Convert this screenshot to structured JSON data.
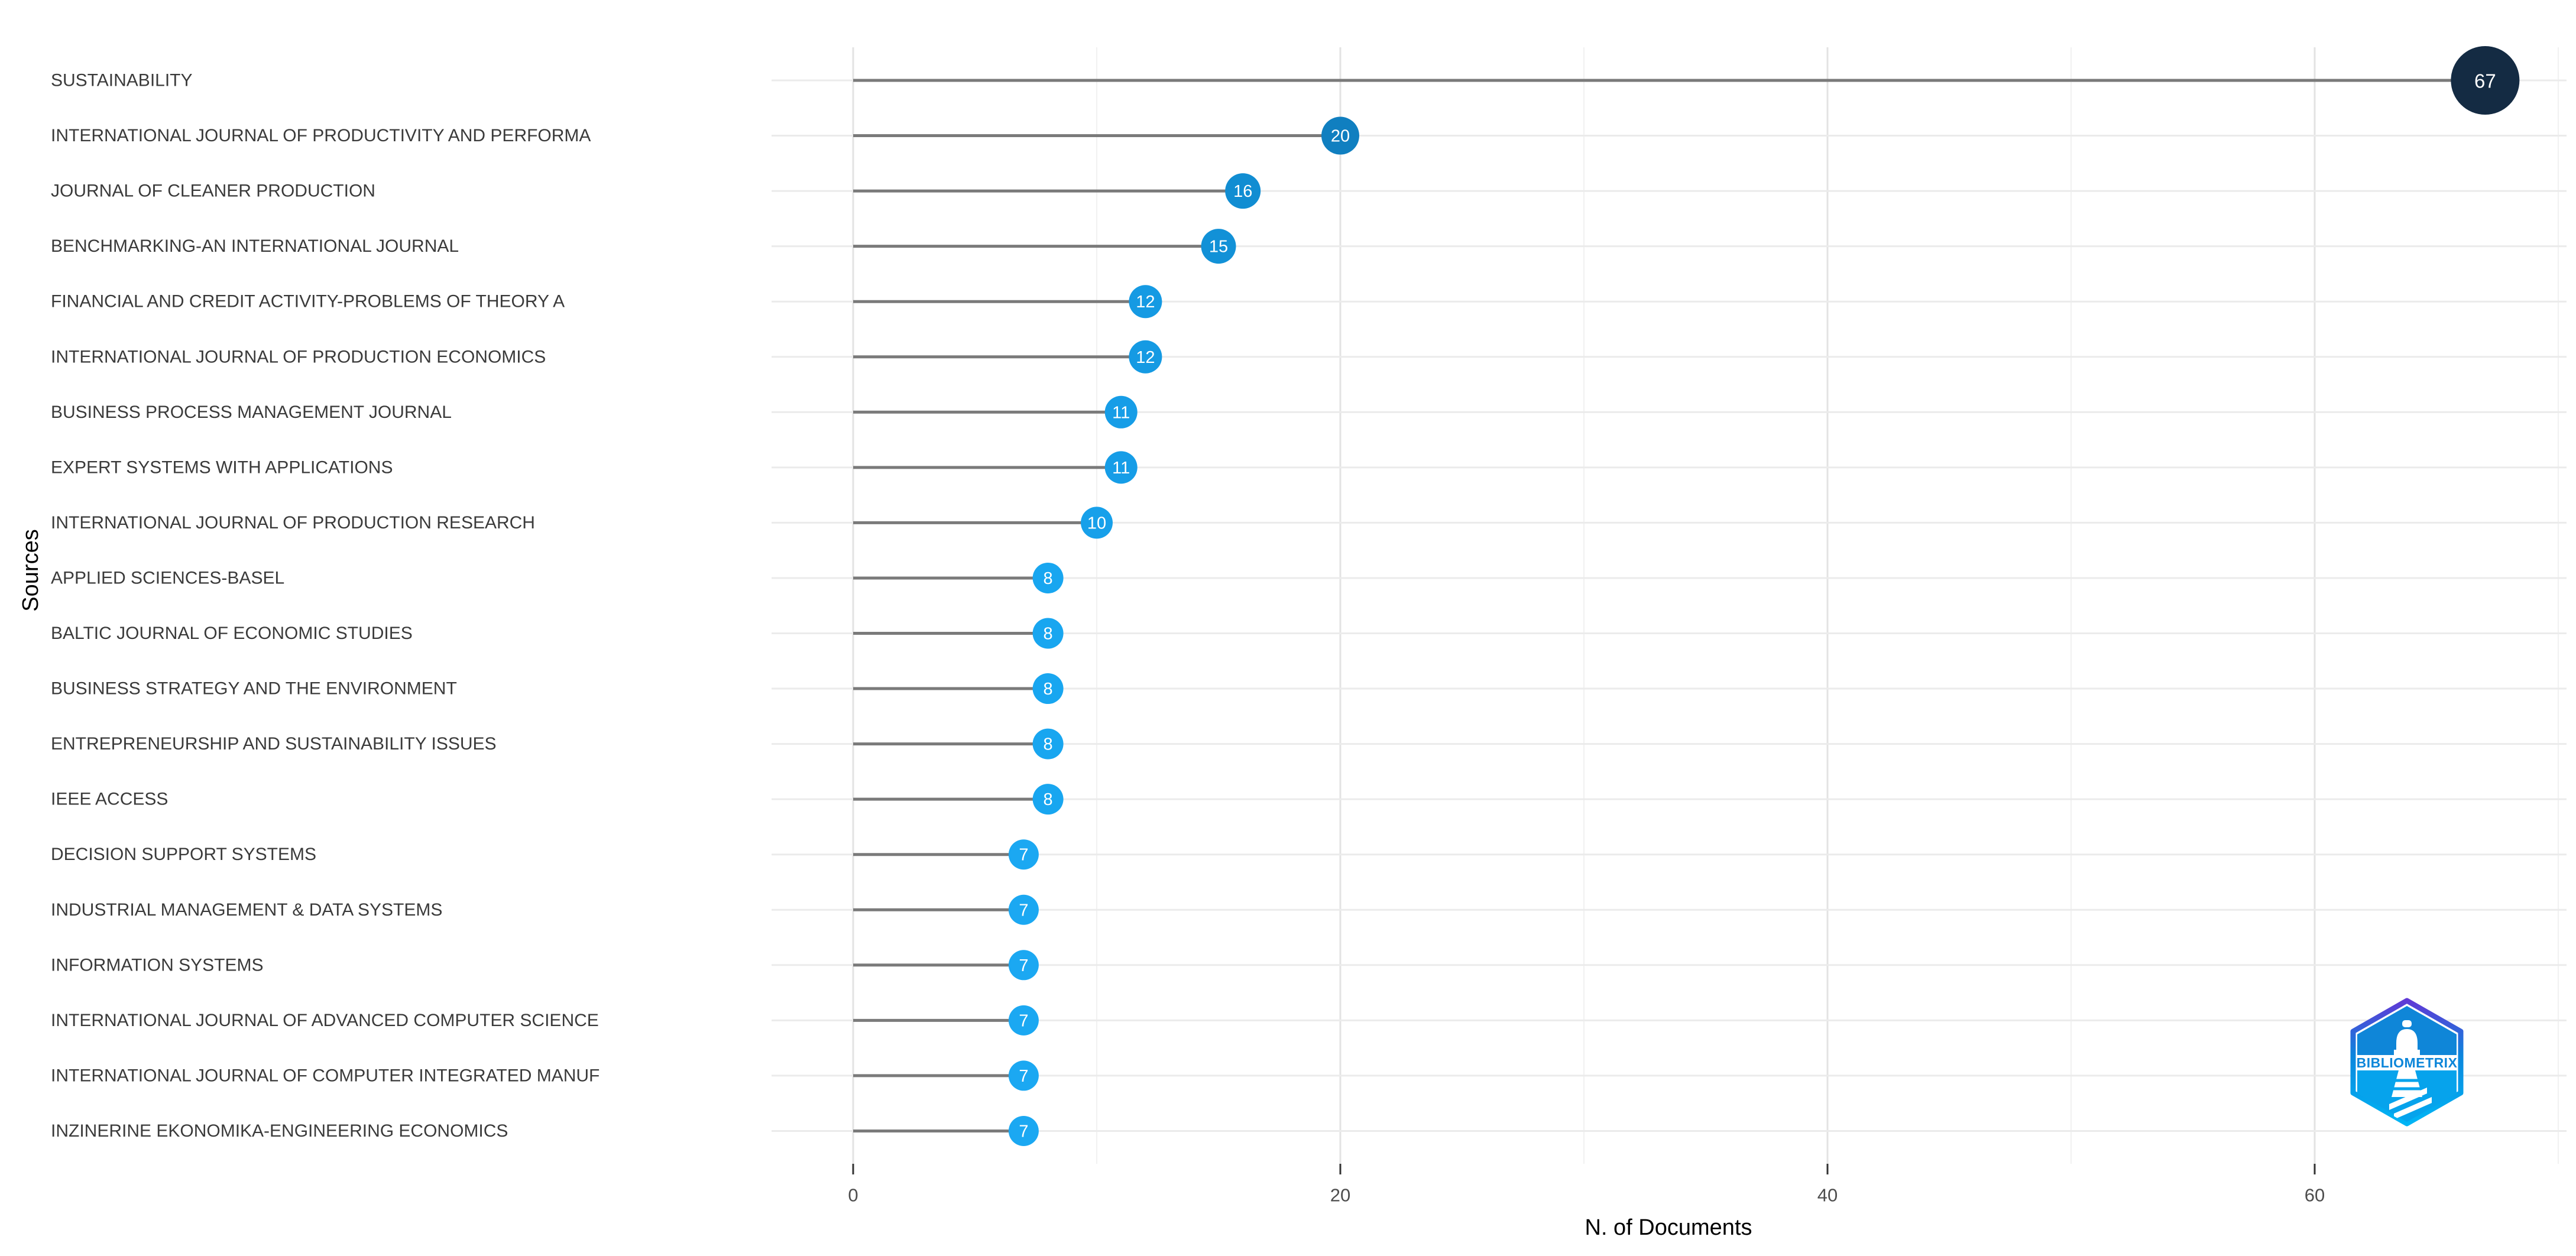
{
  "chart_data": {
    "type": "lollipop",
    "orientation": "horizontal",
    "title": "",
    "xlabel": "N. of Documents",
    "ylabel": "Sources",
    "x_ticks": [
      0,
      20,
      40,
      60
    ],
    "x_minor_ticks": [
      10,
      30,
      50,
      70
    ],
    "xlim": [
      -3.35,
      70.35
    ],
    "grid": true,
    "legend_position": "none",
    "stem_color": "#7A7A7A",
    "value_label_color": "#FFFFFF",
    "color_scale": {
      "low_value_color": "#1BA8F2",
      "high_value_color": "#142B43"
    },
    "points": [
      {
        "label": "SUSTAINABILITY",
        "value": 67,
        "color": "#142B43",
        "radius": 58
      },
      {
        "label": "INTERNATIONAL JOURNAL OF PRODUCTIVITY AND PERFORMA",
        "value": 20,
        "color": "#107FC0",
        "radius": 32
      },
      {
        "label": "JOURNAL OF CLEANER PRODUCTION",
        "value": 16,
        "color": "#118DD2",
        "radius": 30
      },
      {
        "label": "BENCHMARKING-AN INTERNATIONAL JOURNAL",
        "value": 15,
        "color": "#1291D7",
        "radius": 29.5
      },
      {
        "label": "FINANCIAL AND CREDIT ACTIVITY-PROBLEMS OF THEORY A",
        "value": 12,
        "color": "#159AE3",
        "radius": 28
      },
      {
        "label": "INTERNATIONAL JOURNAL OF PRODUCTION ECONOMICS",
        "value": 12,
        "color": "#159AE3",
        "radius": 28
      },
      {
        "label": "BUSINESS PROCESS MANAGEMENT JOURNAL",
        "value": 11,
        "color": "#169DE7",
        "radius": 27.5
      },
      {
        "label": "EXPERT SYSTEMS WITH APPLICATIONS",
        "value": 11,
        "color": "#169DE7",
        "radius": 27.5
      },
      {
        "label": "INTERNATIONAL JOURNAL OF PRODUCTION RESEARCH",
        "value": 10,
        "color": "#17A0EA",
        "radius": 27
      },
      {
        "label": "APPLIED SCIENCES-BASEL",
        "value": 8,
        "color": "#18A6F0",
        "radius": 26
      },
      {
        "label": "BALTIC JOURNAL OF ECONOMIC STUDIES",
        "value": 8,
        "color": "#18A6F0",
        "radius": 26
      },
      {
        "label": "BUSINESS STRATEGY AND THE ENVIRONMENT",
        "value": 8,
        "color": "#18A6F0",
        "radius": 26
      },
      {
        "label": "ENTREPRENEURSHIP AND SUSTAINABILITY ISSUES",
        "value": 8,
        "color": "#18A6F0",
        "radius": 26
      },
      {
        "label": "IEEE ACCESS",
        "value": 8,
        "color": "#18A6F0",
        "radius": 26
      },
      {
        "label": "DECISION SUPPORT SYSTEMS",
        "value": 7,
        "color": "#1BA8F2",
        "radius": 25.5
      },
      {
        "label": "INDUSTRIAL MANAGEMENT & DATA SYSTEMS",
        "value": 7,
        "color": "#1BA8F2",
        "radius": 25.5
      },
      {
        "label": "INFORMATION SYSTEMS",
        "value": 7,
        "color": "#1BA8F2",
        "radius": 25.5
      },
      {
        "label": "INTERNATIONAL JOURNAL OF ADVANCED COMPUTER SCIENCE",
        "value": 7,
        "color": "#1BA8F2",
        "radius": 25.5
      },
      {
        "label": "INTERNATIONAL JOURNAL OF COMPUTER INTEGRATED MANUF",
        "value": 7,
        "color": "#1BA8F2",
        "radius": 25.5
      },
      {
        "label": "INZINERINE EKONOMIKA-ENGINEERING ECONOMICS",
        "value": 7,
        "color": "#1BA8F2",
        "radius": 25.5
      }
    ]
  },
  "logo": {
    "wordmark": "BIBLIOMETRIX",
    "hex_top_color": "#6039D6",
    "hex_mid_color": "#0B86DD",
    "hex_bottom_color": "#00B5F5"
  }
}
